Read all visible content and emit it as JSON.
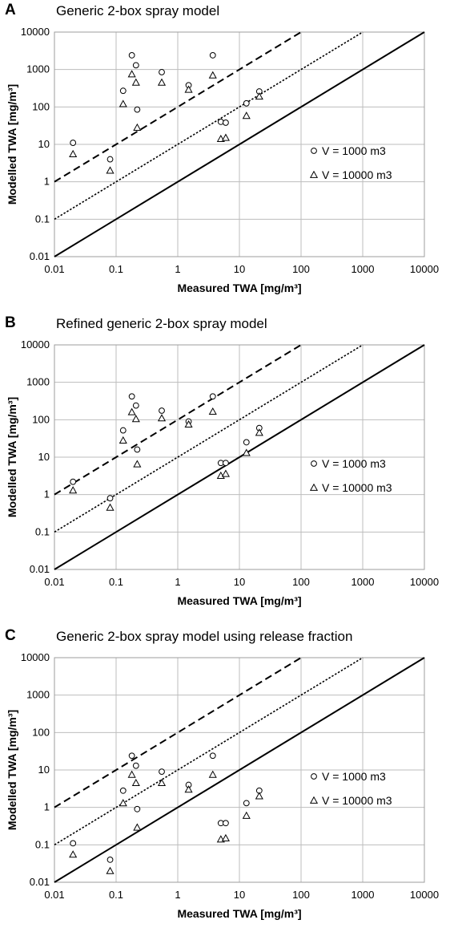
{
  "figure": {
    "panels": [
      {
        "letter": "A"
      },
      {
        "letter": "B"
      },
      {
        "letter": "C"
      }
    ]
  },
  "chart_data": [
    {
      "type": "scatter",
      "title": "Generic 2-box spray model",
      "xlabel": "Measured TWA [mg/m³]",
      "ylabel": "Modelled TWA [mg/m³]",
      "x_scale": "log",
      "y_scale": "log",
      "xlim": [
        0.01,
        10000
      ],
      "ylim": [
        0.01,
        10000
      ],
      "x_ticks": [
        "0.01",
        "0.1",
        "1",
        "10",
        "100",
        "1000",
        "10000"
      ],
      "y_ticks": [
        "0.01",
        "0.1",
        "1",
        "10",
        "100",
        "1000",
        "10000"
      ],
      "grid": true,
      "legend_position": "right",
      "reference_lines": [
        {
          "style": "solid",
          "y_over_x": 1
        },
        {
          "style": "dotted",
          "y_over_x": 10
        },
        {
          "style": "dashed",
          "y_over_x": 100
        }
      ],
      "series": [
        {
          "name": "V = 1000 m3",
          "marker": "circle",
          "x": [
            0.02,
            0.08,
            0.13,
            0.18,
            0.21,
            0.22,
            0.55,
            1.5,
            3.7,
            5,
            6,
            13,
            21
          ],
          "y": [
            11,
            4,
            270,
            2400,
            1300,
            85,
            850,
            380,
            2400,
            40,
            38,
            125,
            260
          ]
        },
        {
          "name": "V = 10000 m3",
          "marker": "triangle",
          "x": [
            0.02,
            0.08,
            0.13,
            0.18,
            0.21,
            0.22,
            0.55,
            1.5,
            3.7,
            5,
            6,
            13,
            21
          ],
          "y": [
            5.5,
            2,
            120,
            750,
            450,
            28,
            450,
            290,
            700,
            14,
            15,
            58,
            190
          ]
        }
      ]
    },
    {
      "type": "scatter",
      "title": "Refined generic 2-box spray model",
      "xlabel": "Measured TWA [mg/m³]",
      "ylabel": "Modelled TWA [mg/m³]",
      "x_scale": "log",
      "y_scale": "log",
      "xlim": [
        0.01,
        10000
      ],
      "ylim": [
        0.01,
        10000
      ],
      "x_ticks": [
        "0.01",
        "0.1",
        "1",
        "10",
        "100",
        "1000",
        "10000"
      ],
      "y_ticks": [
        "0.01",
        "0.1",
        "1",
        "10",
        "100",
        "1000",
        "10000"
      ],
      "grid": true,
      "legend_position": "right",
      "reference_lines": [
        {
          "style": "solid",
          "y_over_x": 1
        },
        {
          "style": "dotted",
          "y_over_x": 10
        },
        {
          "style": "dashed",
          "y_over_x": 100
        }
      ],
      "series": [
        {
          "name": "V = 1000 m3",
          "marker": "circle",
          "x": [
            0.02,
            0.08,
            0.13,
            0.18,
            0.21,
            0.22,
            0.55,
            1.5,
            3.7,
            5,
            6,
            13,
            21
          ],
          "y": [
            2.2,
            0.8,
            52,
            420,
            240,
            16,
            175,
            90,
            420,
            7,
            7,
            25,
            60
          ]
        },
        {
          "name": "V = 10000 m3",
          "marker": "triangle",
          "x": [
            0.02,
            0.08,
            0.13,
            0.18,
            0.21,
            0.22,
            0.55,
            1.5,
            3.7,
            5,
            6,
            13,
            21
          ],
          "y": [
            1.3,
            0.45,
            28,
            160,
            105,
            6.5,
            110,
            75,
            165,
            3.2,
            3.6,
            13,
            45
          ]
        }
      ]
    },
    {
      "type": "scatter",
      "title": "Generic 2-box spray model using release fraction",
      "xlabel": "Measured TWA [mg/m³]",
      "ylabel": "Modelled TWA [mg/m³]",
      "x_scale": "log",
      "y_scale": "log",
      "xlim": [
        0.01,
        10000
      ],
      "ylim": [
        0.01,
        10000
      ],
      "x_ticks": [
        "0.01",
        "0.1",
        "1",
        "10",
        "100",
        "1000",
        "10000"
      ],
      "y_ticks": [
        "0.01",
        "0.1",
        "1",
        "10",
        "100",
        "1000",
        "10000"
      ],
      "grid": true,
      "legend_position": "right",
      "reference_lines": [
        {
          "style": "solid",
          "y_over_x": 1
        },
        {
          "style": "dotted",
          "y_over_x": 10
        },
        {
          "style": "dashed",
          "y_over_x": 100
        }
      ],
      "series": [
        {
          "name": "V = 1000 m3",
          "marker": "circle",
          "x": [
            0.02,
            0.08,
            0.13,
            0.18,
            0.21,
            0.22,
            0.55,
            1.5,
            3.7,
            5,
            6,
            13,
            21
          ],
          "y": [
            0.11,
            0.04,
            2.8,
            24,
            13,
            0.9,
            9,
            4,
            24,
            0.38,
            0.38,
            1.3,
            2.8
          ]
        },
        {
          "name": "V = 10000 m3",
          "marker": "triangle",
          "x": [
            0.02,
            0.08,
            0.13,
            0.18,
            0.21,
            0.22,
            0.55,
            1.5,
            3.7,
            5,
            6,
            13,
            21
          ],
          "y": [
            0.055,
            0.02,
            1.3,
            7.5,
            4.5,
            0.29,
            4.5,
            3.0,
            7.5,
            0.14,
            0.15,
            0.6,
            2.0
          ]
        }
      ]
    }
  ]
}
